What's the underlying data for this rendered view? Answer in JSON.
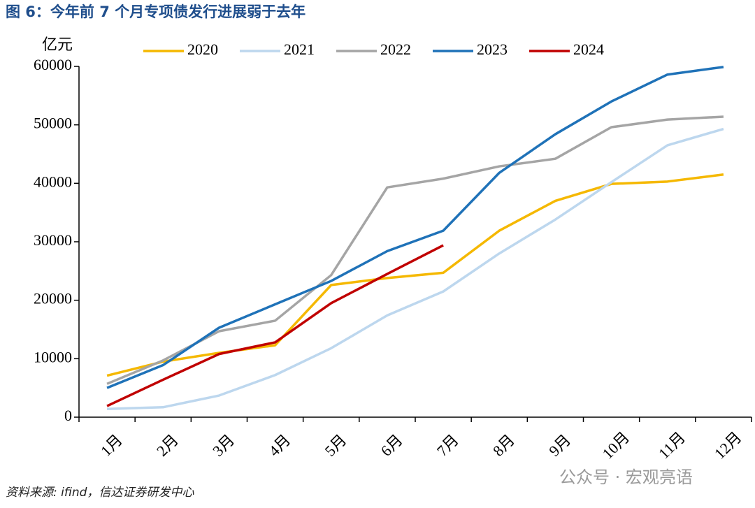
{
  "chart_data": {
    "type": "line",
    "title": "图 6：今年前 7 个月专项债发行进展弱于去年",
    "y_label": "亿元",
    "source": "资料来源: ifind，信达证券研发中心",
    "watermark": "公众号 · 宏观亮语",
    "categories": [
      "1月",
      "2月",
      "3月",
      "4月",
      "5月",
      "6月",
      "7月",
      "8月",
      "9月",
      "10月",
      "11月",
      "12月"
    ],
    "series": [
      {
        "name": "2020",
        "color": "#f5b800",
        "values": [
          7100,
          9500,
          11000,
          12300,
          22600,
          23800,
          24700,
          31900,
          37000,
          39900,
          40300,
          41500
        ]
      },
      {
        "name": "2021",
        "color": "#bdd7ee",
        "values": [
          1400,
          1700,
          3700,
          7200,
          11800,
          17400,
          21500,
          28000,
          33800,
          40200,
          46500,
          49300
        ]
      },
      {
        "name": "2022",
        "color": "#a5a5a5",
        "values": [
          5700,
          9700,
          14700,
          16500,
          24300,
          39300,
          40800,
          42900,
          44200,
          49600,
          50900,
          51400
        ]
      },
      {
        "name": "2023",
        "color": "#1f72b8",
        "values": [
          5000,
          8900,
          15300,
          19300,
          23300,
          28400,
          31900,
          41800,
          48400,
          54000,
          58600,
          59900
        ]
      },
      {
        "name": "2024",
        "color": "#c00000",
        "values": [
          1900,
          6400,
          10800,
          12800,
          19500,
          24500,
          29400,
          null,
          null,
          null,
          null,
          null
        ]
      }
    ],
    "ylim": [
      0,
      60000
    ],
    "yticks": [
      0,
      10000,
      20000,
      30000,
      40000,
      50000,
      60000
    ],
    "legend": "top"
  }
}
